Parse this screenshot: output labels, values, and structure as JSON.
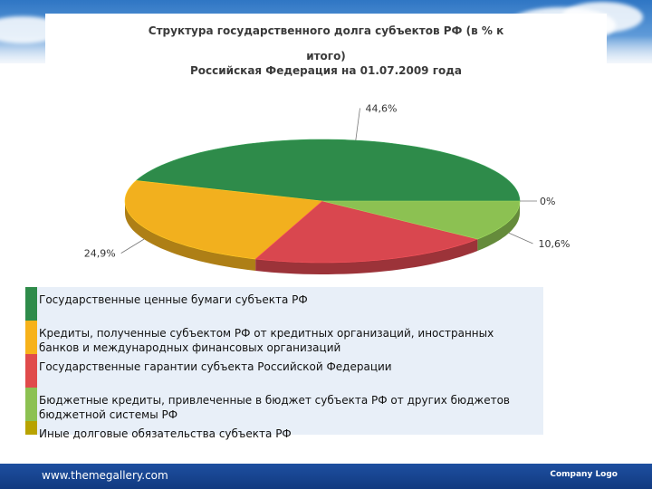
{
  "chart_data": {
    "type": "pie",
    "title_lines": [
      "Структура государственного долга субъектов РФ (в % к",
      "итого)",
      "Российская Федерация на 01.07.2009  года"
    ],
    "slices": [
      {
        "label": "Государственные ценные бумаги субъекта РФ",
        "value": 44.6,
        "display": "44,6%",
        "color": "#2e8b4a"
      },
      {
        "label": "Кредиты, полученные субъектом РФ от кредитных организаций, иностранных банков и международных финансовых организаций",
        "value": 24.9,
        "display": "24,9%",
        "color": "#f2b01e"
      },
      {
        "label": "Государственные гарантии субъекта Российской Федерации",
        "value": 19.9,
        "display": "",
        "color": "#d9474f"
      },
      {
        "label": "Бюджетные кредиты, привлеченные в бюджет субъекта РФ от других бюджетов бюджетной системы РФ",
        "value": 10.6,
        "display": "10,6%",
        "color": "#8cc152"
      },
      {
        "label": "Иные долговые обязательства субъекта РФ",
        "value": 0.0,
        "display": "0%",
        "color": "#b5a100"
      }
    ]
  },
  "legend": {
    "items": [
      {
        "lines": [
          "Государственные ценные бумаги субъекта РФ"
        ],
        "color": "#2e8b4a"
      },
      {
        "lines": [
          "Кредиты, полученные субъектом РФ от кредитных организаций, иностранных",
          "банков и международных финансовых организаций"
        ],
        "color": "#f7b21a"
      },
      {
        "lines": [
          "Государственные гарантии субъекта Российской Федерации"
        ],
        "color": "#e04b4b"
      },
      {
        "lines": [
          "Бюджетные кредиты, привлеченные в бюджет субъекта РФ от других бюджетов",
          "бюджетной системы РФ"
        ],
        "color": "#8cc152"
      },
      {
        "lines": [
          "Иные долговые обязательства субъекта РФ"
        ],
        "color": "#b8a300"
      }
    ]
  },
  "footer": {
    "url": "www.themegallery.com",
    "logo": "Company Logo"
  }
}
